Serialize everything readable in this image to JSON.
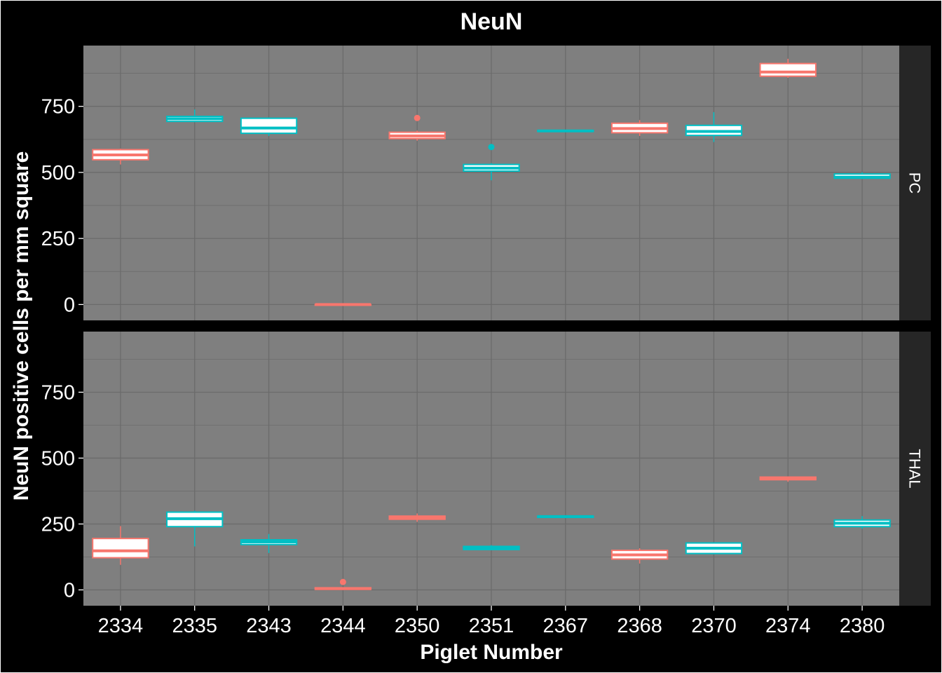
{
  "chart_data": {
    "type": "boxplot",
    "title": "NeuN",
    "xlabel": "Piglet Number",
    "ylabel": "NeuN positive cells per mm square",
    "categories": [
      "2334",
      "2335",
      "2343",
      "2344",
      "2350",
      "2351",
      "2367",
      "2368",
      "2370",
      "2374",
      "2380"
    ],
    "category_colors": [
      "#F8766D",
      "#00BFC4",
      "#00BFC4",
      "#F8766D",
      "#F8766D",
      "#00BFC4",
      "#00BFC4",
      "#F8766D",
      "#00BFC4",
      "#F8766D",
      "#00BFC4"
    ],
    "ylim": [
      -60,
      980
    ],
    "yticks": [
      0,
      250,
      500,
      750
    ],
    "grid": true,
    "colors": {
      "background": "#000000",
      "panel": "#7F7F7F",
      "grid": "#6B6B6B",
      "strip": "#262626",
      "fill": "#FFFFFF"
    },
    "panels": [
      {
        "name": "PC",
        "boxes": [
          {
            "min": 530,
            "q1": 548,
            "median": 566,
            "q3": 586,
            "max": 590,
            "outliers": []
          },
          {
            "min": 690,
            "q1": 693,
            "median": 703,
            "q3": 712,
            "max": 738,
            "outliers": []
          },
          {
            "min": 638,
            "q1": 648,
            "median": 668,
            "q3": 705,
            "max": 708,
            "outliers": []
          },
          {
            "min": 0,
            "q1": 0,
            "median": 0,
            "q3": 0,
            "max": 0,
            "outliers": []
          },
          {
            "min": 620,
            "q1": 628,
            "median": 638,
            "q3": 652,
            "max": 658,
            "outliers": [
              706
            ]
          },
          {
            "min": 470,
            "q1": 505,
            "median": 516,
            "q3": 530,
            "max": 535,
            "outliers": [
              596
            ]
          },
          {
            "min": 655,
            "q1": 655,
            "median": 657,
            "q3": 659,
            "max": 659,
            "outliers": []
          },
          {
            "min": 638,
            "q1": 650,
            "median": 666,
            "q3": 686,
            "max": 698,
            "outliers": []
          },
          {
            "min": 615,
            "q1": 640,
            "median": 655,
            "q3": 678,
            "max": 728,
            "outliers": []
          },
          {
            "min": 858,
            "q1": 864,
            "median": 880,
            "q3": 912,
            "max": 930,
            "outliers": []
          },
          {
            "min": 475,
            "q1": 478,
            "median": 482,
            "q3": 494,
            "max": 500,
            "outliers": []
          }
        ]
      },
      {
        "name": "THAL",
        "boxes": [
          {
            "min": 95,
            "q1": 122,
            "median": 148,
            "q3": 195,
            "max": 242,
            "outliers": []
          },
          {
            "min": 165,
            "q1": 240,
            "median": 270,
            "q3": 295,
            "max": 300,
            "outliers": []
          },
          {
            "min": 140,
            "q1": 172,
            "median": 182,
            "q3": 190,
            "max": 212,
            "outliers": []
          },
          {
            "min": 0,
            "q1": 2,
            "median": 5,
            "q3": 8,
            "max": 10,
            "outliers": [
              30
            ]
          },
          {
            "min": 258,
            "q1": 268,
            "median": 274,
            "q3": 280,
            "max": 290,
            "outliers": []
          },
          {
            "min": 152,
            "q1": 153,
            "median": 158,
            "q3": 165,
            "max": 170,
            "outliers": []
          },
          {
            "min": 275,
            "q1": 275,
            "median": 278,
            "q3": 280,
            "max": 280,
            "outliers": []
          },
          {
            "min": 100,
            "q1": 117,
            "median": 133,
            "q3": 150,
            "max": 158,
            "outliers": []
          },
          {
            "min": 135,
            "q1": 138,
            "median": 158,
            "q3": 178,
            "max": 180,
            "outliers": []
          },
          {
            "min": 410,
            "q1": 418,
            "median": 424,
            "q3": 428,
            "max": 430,
            "outliers": []
          },
          {
            "min": 232,
            "q1": 240,
            "median": 253,
            "q3": 265,
            "max": 280,
            "outliers": []
          }
        ]
      }
    ]
  }
}
